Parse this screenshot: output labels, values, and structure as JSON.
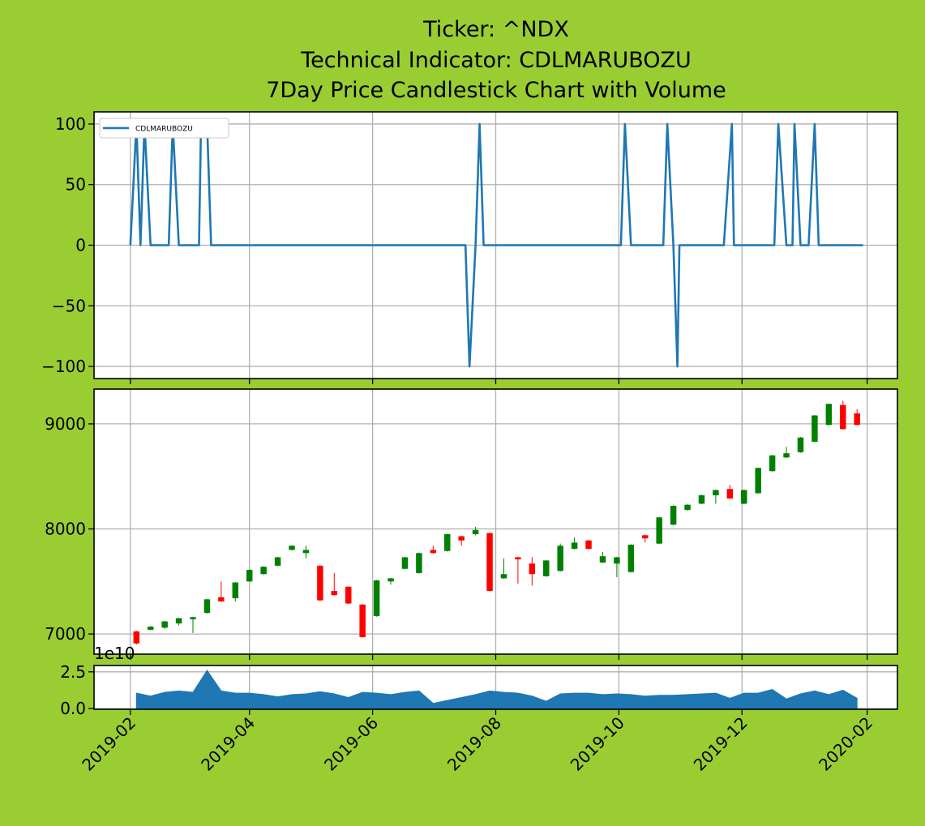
{
  "chart_data": [
    {
      "type": "line",
      "title": [
        "Ticker: ^NDX",
        "Technical Indicator: CDLMARUBOZU",
        "7Day Price Candlestick Chart with Volume"
      ],
      "x": [
        "2019-02-01",
        "2019-02-04",
        "2019-02-06",
        "2019-02-08",
        "2019-02-11",
        "2019-02-20",
        "2019-02-22",
        "2019-02-25",
        "2019-03-07",
        "2019-03-08",
        "2019-03-11",
        "2019-03-13",
        "2019-07-17",
        "2019-07-19",
        "2019-07-22",
        "2019-07-24",
        "2019-07-26",
        "2019-10-02",
        "2019-10-04",
        "2019-10-07",
        "2019-10-23",
        "2019-10-25",
        "2019-10-28",
        "2019-10-30",
        "2019-10-31",
        "2019-11-22",
        "2019-11-26",
        "2019-11-27",
        "2019-12-17",
        "2019-12-19",
        "2019-12-23",
        "2019-12-26",
        "2019-12-27",
        "2019-12-30",
        "2020-01-03",
        "2020-01-06",
        "2020-01-08",
        "2020-01-30"
      ],
      "series": [
        {
          "name": "CDLMARUBOZU",
          "color": "#1f77b4",
          "values": [
            0,
            100,
            0,
            100,
            0,
            0,
            100,
            0,
            0,
            100,
            100,
            0,
            0,
            -100,
            0,
            100,
            0,
            0,
            100,
            0,
            0,
            100,
            0,
            -100,
            0,
            0,
            100,
            0,
            0,
            100,
            0,
            0,
            100,
            0,
            0,
            100,
            0,
            0
          ]
        }
      ],
      "ylim": [
        -110,
        110
      ],
      "yticks": [
        {
          "value": -100,
          "label": "−100"
        },
        {
          "value": -50,
          "label": "−50"
        },
        0,
        50,
        100
      ],
      "grid": true,
      "legend": "upper left"
    },
    {
      "type": "candlestick",
      "x": [
        "2019-02-04",
        "2019-02-11",
        "2019-02-18",
        "2019-02-25",
        "2019-03-04",
        "2019-03-11",
        "2019-03-18",
        "2019-03-25",
        "2019-04-01",
        "2019-04-08",
        "2019-04-15",
        "2019-04-22",
        "2019-04-29",
        "2019-05-06",
        "2019-05-13",
        "2019-05-20",
        "2019-05-27",
        "2019-06-03",
        "2019-06-10",
        "2019-06-17",
        "2019-06-24",
        "2019-07-01",
        "2019-07-08",
        "2019-07-15",
        "2019-07-22",
        "2019-07-29",
        "2019-08-05",
        "2019-08-12",
        "2019-08-19",
        "2019-08-26",
        "2019-09-02",
        "2019-09-09",
        "2019-09-16",
        "2019-09-23",
        "2019-09-30",
        "2019-10-07",
        "2019-10-14",
        "2019-10-21",
        "2019-10-28",
        "2019-11-04",
        "2019-11-11",
        "2019-11-18",
        "2019-11-25",
        "2019-12-02",
        "2019-12-09",
        "2019-12-16",
        "2019-12-23",
        "2019-12-30",
        "2020-01-06",
        "2020-01-13",
        "2020-01-20",
        "2020-01-27"
      ],
      "open": [
        7025,
        7040,
        7060,
        7100,
        7140,
        7200,
        7350,
        7340,
        7500,
        7570,
        7650,
        7800,
        7770,
        7650,
        7410,
        7450,
        7280,
        7170,
        7500,
        7620,
        7580,
        7800,
        7790,
        7930,
        7950,
        7960,
        7530,
        7730,
        7670,
        7550,
        7600,
        7810,
        7890,
        7680,
        7670,
        7590,
        7940,
        7860,
        8040,
        8180,
        8240,
        8320,
        8380,
        8240,
        8340,
        8550,
        8680,
        8730,
        8830,
        8990,
        9180,
        9100
      ],
      "high": [
        7030,
        7075,
        7125,
        7155,
        7165,
        7335,
        7500,
        7495,
        7615,
        7645,
        7735,
        7845,
        7840,
        7655,
        7580,
        7455,
        7285,
        7515,
        7535,
        7735,
        7775,
        7840,
        7955,
        7935,
        8020,
        7965,
        7720,
        7735,
        7730,
        7705,
        7860,
        7920,
        7895,
        7780,
        7735,
        7855,
        7945,
        8115,
        8225,
        8235,
        8325,
        8375,
        8420,
        8375,
        8585,
        8705,
        8780,
        8875,
        9085,
        9195,
        9220,
        9140
      ],
      "low": [
        6900,
        7035,
        7050,
        7080,
        7010,
        7195,
        7305,
        7310,
        7495,
        7565,
        7645,
        7795,
        7720,
        7315,
        7365,
        7285,
        6965,
        7165,
        7470,
        7615,
        7575,
        7765,
        7785,
        7840,
        7940,
        7405,
        7525,
        7480,
        7460,
        7545,
        7595,
        7805,
        7805,
        7675,
        7540,
        7585,
        7870,
        7855,
        8035,
        8175,
        8235,
        8240,
        8285,
        8235,
        8335,
        8545,
        8675,
        8725,
        8825,
        8985,
        8945,
        8985
      ],
      "close": [
        6910,
        7070,
        7120,
        7150,
        7160,
        7330,
        7310,
        7490,
        7610,
        7640,
        7730,
        7840,
        7800,
        7320,
        7370,
        7290,
        6970,
        7510,
        7530,
        7730,
        7770,
        7770,
        7950,
        7890,
        7990,
        7410,
        7570,
        7710,
        7570,
        7700,
        7840,
        7870,
        7810,
        7740,
        7730,
        7850,
        7910,
        8110,
        8220,
        8230,
        8320,
        8370,
        8290,
        8370,
        8580,
        8700,
        8720,
        8870,
        9080,
        9190,
        8950,
        8990
      ],
      "up_color": "green",
      "down_color": "red",
      "ylim": [
        6808,
        9331
      ],
      "yticks": [
        7000,
        8000,
        9000
      ],
      "grid": true
    },
    {
      "type": "area",
      "color": "#1f77b4",
      "offset_label": "1e10",
      "x": [
        "2019-02-04",
        "2019-02-11",
        "2019-02-18",
        "2019-02-25",
        "2019-03-04",
        "2019-03-11",
        "2019-03-18",
        "2019-03-25",
        "2019-04-01",
        "2019-04-08",
        "2019-04-15",
        "2019-04-22",
        "2019-04-29",
        "2019-05-06",
        "2019-05-13",
        "2019-05-20",
        "2019-05-27",
        "2019-06-03",
        "2019-06-10",
        "2019-06-17",
        "2019-06-24",
        "2019-07-01",
        "2019-07-08",
        "2019-07-15",
        "2019-07-22",
        "2019-07-29",
        "2019-08-05",
        "2019-08-12",
        "2019-08-19",
        "2019-08-26",
        "2019-09-02",
        "2019-09-09",
        "2019-09-16",
        "2019-09-23",
        "2019-09-30",
        "2019-10-07",
        "2019-10-14",
        "2019-10-21",
        "2019-10-28",
        "2019-11-04",
        "2019-11-11",
        "2019-11-18",
        "2019-11-25",
        "2019-12-02",
        "2019-12-09",
        "2019-12-16",
        "2019-12-23",
        "2019-12-30",
        "2020-01-06",
        "2020-01-13",
        "2020-01-20",
        "2020-01-27"
      ],
      "values": [
        1.05,
        0.85,
        1.1,
        1.2,
        1.1,
        2.6,
        1.2,
        1.05,
        1.05,
        0.95,
        0.8,
        0.95,
        1.0,
        1.15,
        1.0,
        0.75,
        1.1,
        1.05,
        0.95,
        1.1,
        1.2,
        0.35,
        0.55,
        0.75,
        0.95,
        1.2,
        1.1,
        1.05,
        0.85,
        0.5,
        1.0,
        1.05,
        1.05,
        0.95,
        1.0,
        0.95,
        0.85,
        0.9,
        0.9,
        0.95,
        1.0,
        1.05,
        0.7,
        1.05,
        1.05,
        1.3,
        0.65,
        1.0,
        1.2,
        0.95,
        1.25,
        0.7
      ],
      "ylim": [
        -0.05,
        2.93
      ],
      "yticks": [
        {
          "value": 0,
          "label": "0.0"
        },
        2.5
      ],
      "xlim": [
        "2019-01-14",
        "2020-02-16"
      ],
      "xticks": [
        "2019-02",
        "2019-04",
        "2019-06",
        "2019-08",
        "2019-10",
        "2019-12",
        "2020-02"
      ],
      "grid": true
    }
  ]
}
